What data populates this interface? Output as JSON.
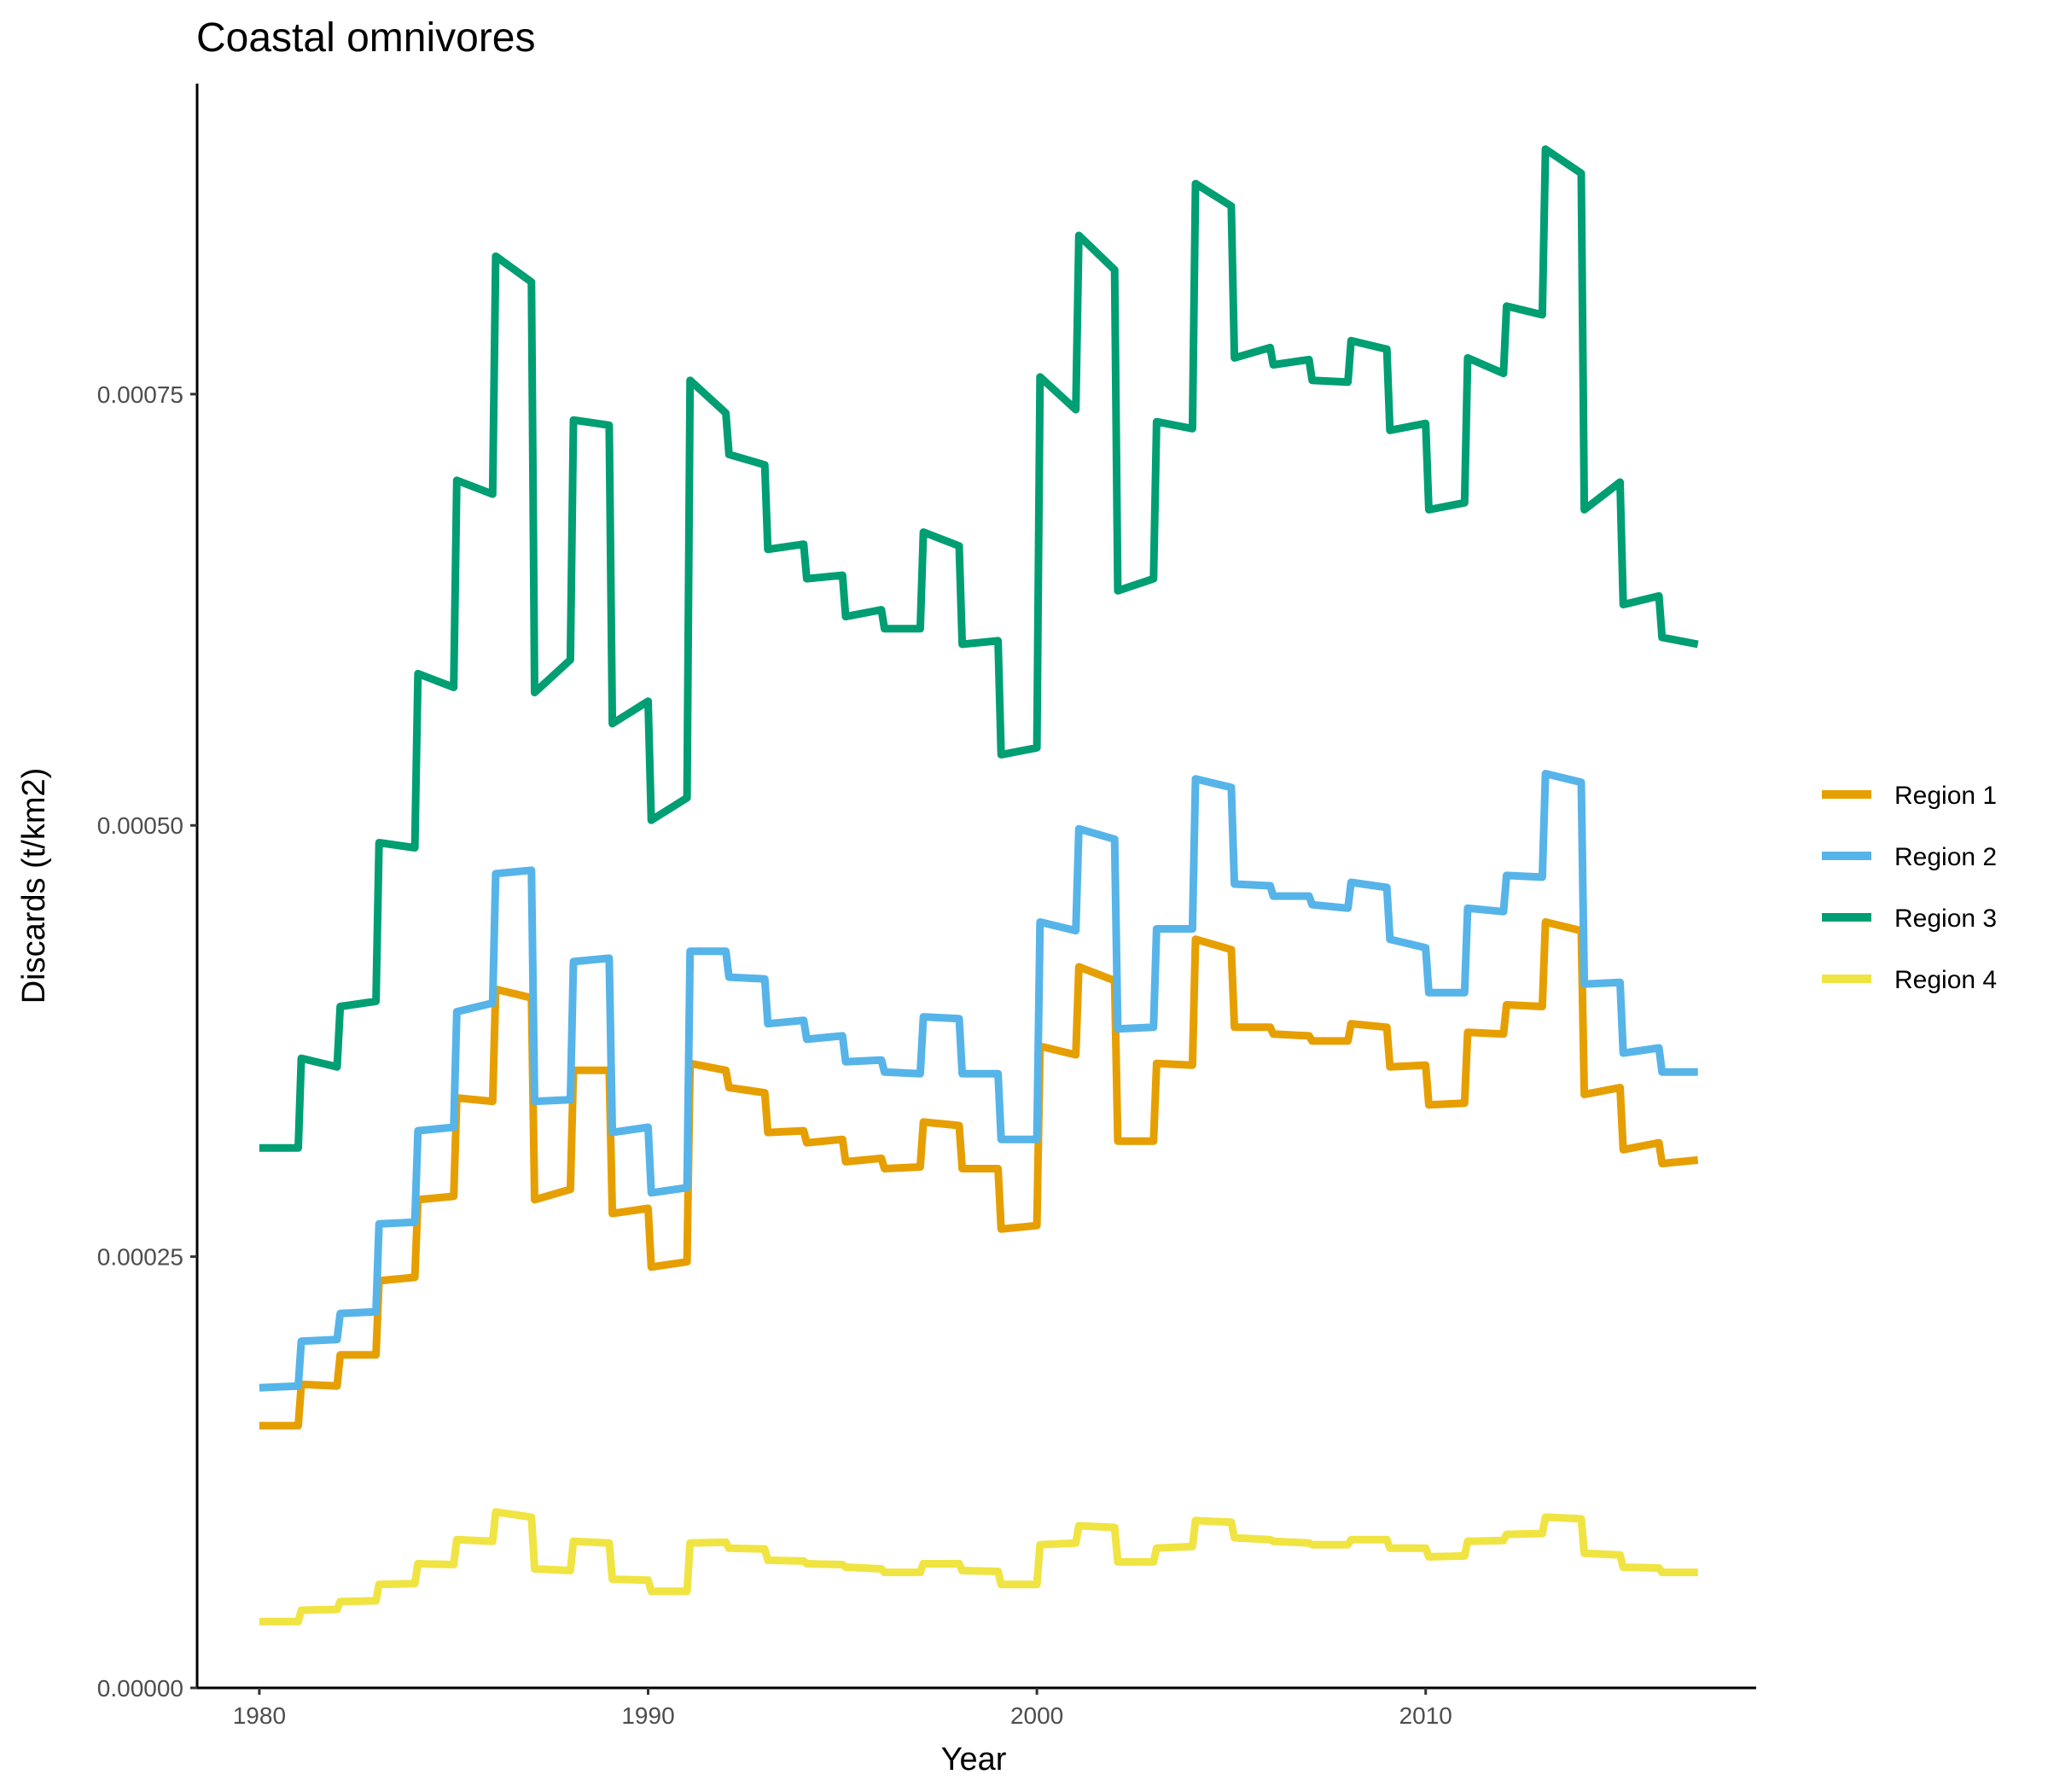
{
  "chart_data": {
    "type": "line",
    "title": "Coastal omnivores",
    "xlabel": "Year",
    "ylabel": "Discards (t/km2)",
    "xlim": [
      1978.4,
      2018.5
    ],
    "ylim": [
      0,
      0.00093
    ],
    "x_ticks": [
      1980,
      1990,
      2000,
      2010
    ],
    "x_tick_labels": [
      "1980",
      "1990",
      "2000",
      "2010"
    ],
    "y_ticks": [
      0,
      0.00025,
      0.0005,
      0.00075
    ],
    "y_tick_labels": [
      "0.00000",
      "0.00025",
      "0.00050",
      "0.00075"
    ],
    "grid": false,
    "legend_position": "right",
    "step_style": "monthly values: each year drawn as a level with slight drift, jump at year start",
    "x": [
      1980.0,
      1981.0,
      1982.0,
      1983.0,
      1984.0,
      1985.0,
      1986.0,
      1987.0,
      1988.0,
      1989.0,
      1990.0,
      1991.0,
      1992.0,
      1993.0,
      1994.0,
      1995.0,
      1996.0,
      1997.0,
      1998.0,
      1999.0,
      2000.0,
      2001.0,
      2002.0,
      2003.0,
      2004.0,
      2005.0,
      2006.0,
      2007.0,
      2008.0,
      2009.0,
      2010.0,
      2011.0,
      2012.0,
      2013.0,
      2014.0,
      2015.0,
      2016.0,
      2017.0
    ],
    "series": [
      {
        "name": "Region 1",
        "color": "#E69F00",
        "start": [
          0.000152,
          0.000176,
          0.000193,
          0.000236,
          0.000283,
          0.000342,
          0.000405,
          0.000283,
          0.000358,
          0.000275,
          0.000244,
          0.000362,
          0.000348,
          0.000322,
          0.000316,
          0.000305,
          0.000301,
          0.000328,
          0.000301,
          0.000266,
          0.000372,
          0.000418,
          0.000317,
          0.000362,
          0.000434,
          0.000383,
          0.000379,
          0.000375,
          0.000385,
          0.00036,
          0.000338,
          0.00038,
          0.000396,
          0.000444,
          0.000344,
          0.000312,
          0.000304
        ],
        "end": [
          0.000152,
          0.000175,
          0.000193,
          0.000238,
          0.000285,
          0.00034,
          0.0004,
          0.000289,
          0.000358,
          0.000278,
          0.000247,
          0.000358,
          0.000345,
          0.000323,
          0.000318,
          0.000307,
          0.000302,
          0.000326,
          0.000301,
          0.000268,
          0.000367,
          0.00041,
          0.000317,
          0.000361,
          0.000428,
          0.000383,
          0.000378,
          0.000375,
          0.000383,
          0.000361,
          0.000339,
          0.000379,
          0.000395,
          0.000439,
          0.000348,
          0.000316,
          0.000306
        ]
      },
      {
        "name": "Region 2",
        "color": "#56B4E9",
        "start": [
          0.000174,
          0.000201,
          0.000217,
          0.000269,
          0.000323,
          0.000392,
          0.000472,
          0.00034,
          0.000421,
          0.000322,
          0.000287,
          0.000427,
          0.000412,
          0.000385,
          0.000376,
          0.000363,
          0.000357,
          0.000389,
          0.000356,
          0.000318,
          0.000444,
          0.000498,
          0.000382,
          0.00044,
          0.000527,
          0.000466,
          0.000459,
          0.000454,
          0.000467,
          0.000434,
          0.000403,
          0.000452,
          0.000471,
          0.00053,
          0.000408,
          0.000368,
          0.000357
        ],
        "end": [
          0.000175,
          0.000202,
          0.000218,
          0.00027,
          0.000325,
          0.000397,
          0.000474,
          0.000341,
          0.000423,
          0.000325,
          0.00029,
          0.000427,
          0.000411,
          0.000387,
          0.000378,
          0.000364,
          0.000356,
          0.000388,
          0.000356,
          0.000318,
          0.000439,
          0.000492,
          0.000383,
          0.00044,
          0.000522,
          0.000465,
          0.000459,
          0.000452,
          0.000464,
          0.000429,
          0.000403,
          0.00045,
          0.00047,
          0.000525,
          0.000409,
          0.000371,
          0.000357
        ]
      },
      {
        "name": "Region 3",
        "color": "#009E73",
        "start": [
          0.000313,
          0.000365,
          0.000395,
          0.00049,
          0.000588,
          0.0007,
          0.00083,
          0.000577,
          0.000735,
          0.000559,
          0.000503,
          0.000758,
          0.000715,
          0.00066,
          0.000643,
          0.000621,
          0.000614,
          0.00067,
          0.000605,
          0.000541,
          0.00076,
          0.000842,
          0.000636,
          0.000734,
          0.000872,
          0.000771,
          0.000767,
          0.000758,
          0.000781,
          0.000729,
          0.000683,
          0.000771,
          0.000801,
          0.000892,
          0.000683,
          0.000628,
          0.000609
        ],
        "end": [
          0.000313,
          0.00036,
          0.000398,
          0.000487,
          0.00058,
          0.000692,
          0.000815,
          0.000596,
          0.000732,
          0.000572,
          0.000516,
          0.000739,
          0.000709,
          0.000663,
          0.000645,
          0.000625,
          0.000614,
          0.000662,
          0.000607,
          0.000545,
          0.000741,
          0.000822,
          0.000643,
          0.00073,
          0.000859,
          0.000777,
          0.00077,
          0.000757,
          0.000776,
          0.000733,
          0.000687,
          0.000762,
          0.000796,
          0.000878,
          0.000699,
          0.000633,
          0.000605
        ]
      },
      {
        "name": "Region 4",
        "color": "#F0E442",
        "start": [
          3.85e-05,
          4.5e-05,
          5e-05,
          6e-05,
          7.2e-05,
          8.6e-05,
          0.000102,
          6.9e-05,
          8.5e-05,
          6.3e-05,
          5.6e-05,
          8.4e-05,
          8.1e-05,
          7.4e-05,
          7.2e-05,
          7e-05,
          6.7e-05,
          7.2e-05,
          6.8e-05,
          6e-05,
          8.3e-05,
          9.4e-05,
          7.3e-05,
          8.1e-05,
          9.7e-05,
          8.7e-05,
          8.5e-05,
          8.3e-05,
          8.6e-05,
          8.1e-05,
          7.6e-05,
          8.5e-05,
          8.9e-05,
          9.9e-05,
          7.8e-05,
          7e-05,
          6.7e-05
        ],
        "end": [
          3.85e-05,
          4.55e-05,
          5.05e-05,
          6.05e-05,
          7.15e-05,
          8.5e-05,
          9.9e-05,
          6.8e-05,
          8.4e-05,
          6.25e-05,
          5.6e-05,
          8.45e-05,
          8.05e-05,
          7.35e-05,
          7.15e-05,
          6.9e-05,
          6.7e-05,
          7.2e-05,
          6.75e-05,
          6e-05,
          8.4e-05,
          9.3e-05,
          7.3e-05,
          8.2e-05,
          9.6e-05,
          8.6e-05,
          8.4e-05,
          8.3e-05,
          8.6e-05,
          8.1e-05,
          7.65e-05,
          8.55e-05,
          8.95e-05,
          9.8e-05,
          7.7e-05,
          6.95e-05,
          6.7e-05
        ]
      }
    ]
  }
}
